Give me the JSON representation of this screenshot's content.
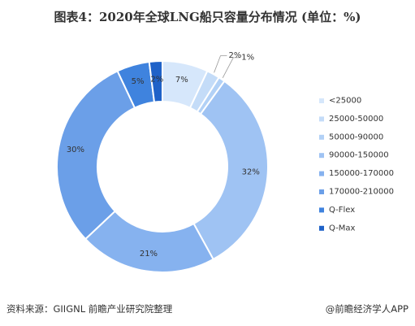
{
  "title": "图表4：2020年全球LNG船只容量分布情况 (单位：%)",
  "chart_data": {
    "type": "pie",
    "donut": true,
    "title": "图表4：2020年全球LNG船只容量分布情况 (单位：%)",
    "unit": "%",
    "legend_position": "right",
    "slices": [
      {
        "name": "<25000",
        "value": 7,
        "label": "7%",
        "color": "#d6e7fb"
      },
      {
        "name": "25000-50000",
        "value": 2,
        "label": "2%",
        "color": "#c4dcf8"
      },
      {
        "name": "50000-90000",
        "value": 1,
        "label": "1%",
        "color": "#b2d1f6"
      },
      {
        "name": "90000-150000",
        "value": 32,
        "label": "32%",
        "color": "#9fc3f3"
      },
      {
        "name": "150000-170000",
        "value": 21,
        "label": "21%",
        "color": "#86b2ef"
      },
      {
        "name": "170000-210000",
        "value": 30,
        "label": "30%",
        "color": "#6b9fe8"
      },
      {
        "name": "Q-Flex",
        "value": 5,
        "label": "5%",
        "color": "#3f83de"
      },
      {
        "name": "Q-Max",
        "value": 2,
        "label": "2%",
        "color": "#1f62c8"
      }
    ]
  },
  "footer": {
    "source": "资料来源：GIIGNL 前瞻产业研究院整理",
    "brand": "@前瞻经济学人APP"
  }
}
